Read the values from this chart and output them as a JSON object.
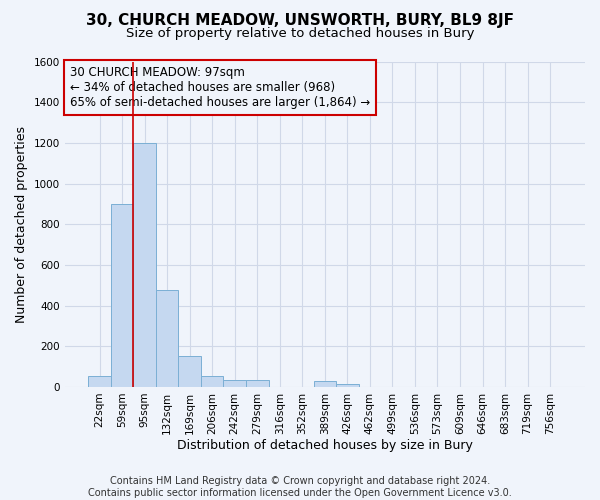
{
  "title": "30, CHURCH MEADOW, UNSWORTH, BURY, BL9 8JF",
  "subtitle": "Size of property relative to detached houses in Bury",
  "xlabel": "Distribution of detached houses by size in Bury",
  "ylabel": "Number of detached properties",
  "footer_line1": "Contains HM Land Registry data © Crown copyright and database right 2024.",
  "footer_line2": "Contains public sector information licensed under the Open Government Licence v3.0.",
  "categories": [
    "22sqm",
    "59sqm",
    "95sqm",
    "132sqm",
    "169sqm",
    "206sqm",
    "242sqm",
    "279sqm",
    "316sqm",
    "352sqm",
    "389sqm",
    "426sqm",
    "462sqm",
    "499sqm",
    "536sqm",
    "573sqm",
    "609sqm",
    "646sqm",
    "683sqm",
    "719sqm",
    "756sqm"
  ],
  "values": [
    55,
    900,
    1200,
    475,
    150,
    55,
    32,
    32,
    0,
    0,
    30,
    17,
    0,
    0,
    0,
    0,
    0,
    0,
    0,
    0,
    0
  ],
  "bar_color": "#c5d8f0",
  "bar_edge_color": "#7bafd4",
  "property_line_index": 2,
  "property_line_color": "#cc0000",
  "annotation_line1": "30 CHURCH MEADOW: 97sqm",
  "annotation_line2": "← 34% of detached houses are smaller (968)",
  "annotation_line3": "65% of semi-detached houses are larger (1,864) →",
  "annotation_box_edgecolor": "#cc0000",
  "ylim": [
    0,
    1600
  ],
  "yticks": [
    0,
    200,
    400,
    600,
    800,
    1000,
    1200,
    1400,
    1600
  ],
  "bg_color": "#f0f4fb",
  "grid_color": "#d0d8e8",
  "title_fontsize": 11,
  "subtitle_fontsize": 9.5,
  "axis_label_fontsize": 9,
  "tick_fontsize": 7.5,
  "footer_fontsize": 7,
  "annotation_fontsize": 8.5
}
